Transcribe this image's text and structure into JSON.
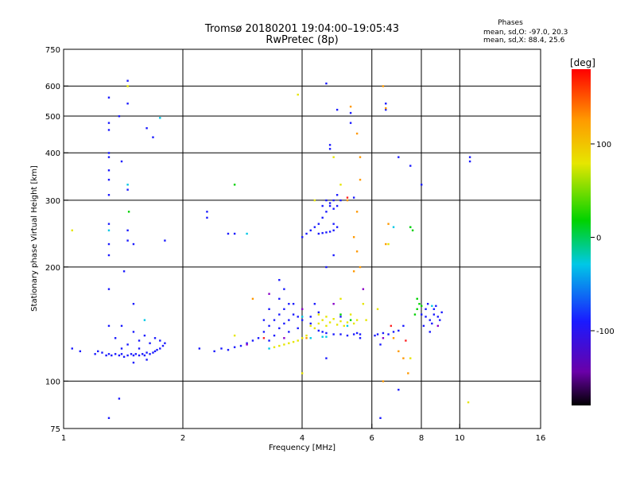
{
  "chart_data": {
    "type": "scatter",
    "title": "Tromsø 20180201 19:04:00–19:05:43",
    "subtitle": "RwPretec (8p)",
    "stats": {
      "heading": "Phases",
      "line1": "mean, sd,O: -97.0, 20.3",
      "line2": "mean, sd,X:  88.4, 25.6"
    },
    "xlabel": "Frequency [MHz]",
    "ylabel": "Stationary phase Virtual Height [km]",
    "x_scale": "log",
    "y_scale": "log",
    "xlim": [
      1,
      16
    ],
    "ylim": [
      75,
      750
    ],
    "x_ticks": [
      1,
      2,
      4,
      6,
      8,
      10,
      16
    ],
    "y_ticks": [
      75,
      100,
      200,
      300,
      400,
      500,
      600,
      750
    ],
    "grid_x": [
      2,
      4,
      6,
      8,
      10
    ],
    "grid_y": [
      100,
      200,
      300,
      400,
      500,
      600
    ],
    "grid": true,
    "colorbar": {
      "label": "[deg]",
      "range": [
        -180,
        180
      ],
      "ticks": [
        100,
        0,
        -100
      ]
    },
    "series": [
      {
        "color": "#1a1aff",
        "points": [
          [
            1.05,
            122
          ],
          [
            1.1,
            120
          ],
          [
            1.2,
            118
          ],
          [
            1.22,
            120
          ],
          [
            1.25,
            119
          ],
          [
            1.28,
            117
          ],
          [
            1.3,
            118
          ],
          [
            1.32,
            117
          ],
          [
            1.35,
            118
          ],
          [
            1.38,
            117
          ],
          [
            1.4,
            118
          ],
          [
            1.42,
            116
          ],
          [
            1.45,
            117
          ],
          [
            1.48,
            118
          ],
          [
            1.5,
            117
          ],
          [
            1.52,
            118
          ],
          [
            1.55,
            117
          ],
          [
            1.58,
            118
          ],
          [
            1.6,
            117
          ],
          [
            1.62,
            119
          ],
          [
            1.65,
            118
          ],
          [
            1.68,
            119
          ],
          [
            1.7,
            120
          ],
          [
            1.72,
            121
          ],
          [
            1.75,
            122
          ],
          [
            1.78,
            124
          ],
          [
            1.8,
            126
          ],
          [
            1.35,
            130
          ],
          [
            1.4,
            140
          ],
          [
            1.45,
            125
          ],
          [
            1.5,
            135
          ],
          [
            1.55,
            128
          ],
          [
            1.6,
            132
          ],
          [
            1.65,
            126
          ],
          [
            1.7,
            130
          ],
          [
            1.75,
            128
          ],
          [
            1.4,
            122
          ],
          [
            1.55,
            122
          ],
          [
            1.62,
            114
          ],
          [
            1.5,
            112
          ],
          [
            1.3,
            560
          ],
          [
            1.3,
            480
          ],
          [
            1.3,
            460
          ],
          [
            1.3,
            400
          ],
          [
            1.3,
            390
          ],
          [
            1.3,
            360
          ],
          [
            1.3,
            340
          ],
          [
            1.3,
            310
          ],
          [
            1.3,
            260
          ],
          [
            1.3,
            230
          ],
          [
            1.3,
            215
          ],
          [
            1.3,
            175
          ],
          [
            1.3,
            140
          ],
          [
            1.3,
            80
          ],
          [
            1.45,
            620
          ],
          [
            1.45,
            540
          ],
          [
            1.4,
            380
          ],
          [
            1.45,
            320
          ],
          [
            1.45,
            250
          ],
          [
            1.45,
            235
          ],
          [
            1.5,
            230
          ],
          [
            1.42,
            195
          ],
          [
            1.38,
            500
          ],
          [
            1.8,
            235
          ],
          [
            1.62,
            465
          ],
          [
            1.68,
            440
          ],
          [
            1.5,
            160
          ],
          [
            1.38,
            90
          ],
          [
            2.3,
            280
          ],
          [
            2.3,
            270
          ],
          [
            2.6,
            245
          ],
          [
            2.7,
            245
          ],
          [
            2.2,
            122
          ],
          [
            2.4,
            120
          ],
          [
            2.5,
            122
          ],
          [
            2.6,
            121
          ],
          [
            2.7,
            123
          ],
          [
            2.8,
            124
          ],
          [
            2.9,
            126
          ],
          [
            3.0,
            128
          ],
          [
            3.1,
            130
          ],
          [
            3.2,
            135
          ],
          [
            3.3,
            140
          ],
          [
            3.3,
            128
          ],
          [
            3.4,
            145
          ],
          [
            3.4,
            132
          ],
          [
            3.5,
            150
          ],
          [
            3.5,
            138
          ],
          [
            3.6,
            142
          ],
          [
            3.6,
            155
          ],
          [
            3.7,
            145
          ],
          [
            3.7,
            135
          ],
          [
            3.8,
            150
          ],
          [
            3.8,
            160
          ],
          [
            3.9,
            148
          ],
          [
            3.9,
            138
          ],
          [
            4.0,
            145
          ],
          [
            3.5,
            165
          ],
          [
            3.6,
            175
          ],
          [
            3.3,
            155
          ],
          [
            3.2,
            145
          ],
          [
            3.5,
            185
          ],
          [
            3.7,
            160
          ],
          [
            4.0,
            240
          ],
          [
            4.1,
            245
          ],
          [
            4.2,
            250
          ],
          [
            4.3,
            255
          ],
          [
            4.4,
            260
          ],
          [
            4.5,
            270
          ],
          [
            4.6,
            280
          ],
          [
            4.7,
            290
          ],
          [
            4.8,
            300
          ],
          [
            4.9,
            310
          ],
          [
            5.0,
            300
          ],
          [
            4.6,
            300
          ],
          [
            4.7,
            295
          ],
          [
            4.8,
            285
          ],
          [
            4.9,
            290
          ],
          [
            4.5,
            290
          ],
          [
            4.4,
            245
          ],
          [
            4.5,
            246
          ],
          [
            4.6,
            247
          ],
          [
            4.7,
            248
          ],
          [
            4.8,
            250
          ],
          [
            4.9,
            255
          ],
          [
            4.8,
            260
          ],
          [
            4.7,
            420
          ],
          [
            4.7,
            410
          ],
          [
            4.9,
            520
          ],
          [
            5.3,
            510
          ],
          [
            5.3,
            480
          ],
          [
            4.6,
            610
          ],
          [
            4.6,
            200
          ],
          [
            4.8,
            215
          ],
          [
            5.4,
            305
          ],
          [
            4.2,
            142
          ],
          [
            4.4,
            136
          ],
          [
            4.5,
            135
          ],
          [
            4.6,
            134
          ],
          [
            4.8,
            133
          ],
          [
            5.0,
            133
          ],
          [
            5.2,
            132
          ],
          [
            5.4,
            133
          ],
          [
            5.5,
            134
          ],
          [
            5.6,
            133
          ],
          [
            4.2,
            148
          ],
          [
            4.4,
            152
          ],
          [
            5.0,
            148
          ],
          [
            4.3,
            160
          ],
          [
            4.6,
            115
          ],
          [
            5.6,
            130
          ],
          [
            6.1,
            132
          ],
          [
            6.2,
            133
          ],
          [
            6.4,
            134
          ],
          [
            6.6,
            133
          ],
          [
            6.8,
            135
          ],
          [
            7.0,
            136
          ],
          [
            7.2,
            140
          ],
          [
            6.3,
            125
          ],
          [
            8.0,
            150
          ],
          [
            8.2,
            155
          ],
          [
            8.4,
            145
          ],
          [
            8.6,
            150
          ],
          [
            8.8,
            148
          ],
          [
            9.0,
            152
          ],
          [
            8.1,
            140
          ],
          [
            8.3,
            160
          ],
          [
            8.5,
            142
          ],
          [
            8.7,
            158
          ],
          [
            8.9,
            145
          ],
          [
            8.2,
            148
          ],
          [
            8.6,
            155
          ],
          [
            8.4,
            135
          ],
          [
            8.0,
            330
          ],
          [
            7.0,
            390
          ],
          [
            6.5,
            520
          ],
          [
            6.3,
            80
          ],
          [
            6.5,
            540
          ],
          [
            7.5,
            370
          ],
          [
            10.6,
            390
          ],
          [
            10.6,
            380
          ],
          [
            7.0,
            95
          ]
        ]
      },
      {
        "color": "#00c8e6",
        "points": [
          [
            1.3,
            250
          ],
          [
            1.45,
            330
          ],
          [
            1.75,
            495
          ],
          [
            2.9,
            245
          ],
          [
            4.0,
            148
          ],
          [
            4.2,
            130
          ],
          [
            4.6,
            131
          ],
          [
            5.2,
            140
          ],
          [
            6.8,
            255
          ],
          [
            7.5,
            255
          ],
          [
            8.5,
            158
          ],
          [
            1.6,
            145
          ],
          [
            3.3,
            122
          ],
          [
            4.5,
            131
          ]
        ]
      },
      {
        "color": "#00d200",
        "points": [
          [
            1.46,
            280
          ],
          [
            7.5,
            255
          ],
          [
            7.6,
            250
          ],
          [
            7.8,
            165
          ],
          [
            7.9,
            160
          ],
          [
            7.8,
            155
          ],
          [
            7.7,
            150
          ],
          [
            8.0,
            158
          ],
          [
            2.7,
            330
          ],
          [
            5.3,
            145
          ],
          [
            5.0,
            150
          ]
        ]
      },
      {
        "color": "#e6e600",
        "points": [
          [
            4.2,
            140
          ],
          [
            4.3,
            138
          ],
          [
            4.4,
            142
          ],
          [
            4.5,
            145
          ],
          [
            4.6,
            140
          ],
          [
            4.7,
            143
          ],
          [
            4.8,
            146
          ],
          [
            4.9,
            141
          ],
          [
            5.0,
            144
          ],
          [
            5.1,
            140
          ],
          [
            5.2,
            143
          ],
          [
            5.4,
            142
          ],
          [
            5.5,
            145
          ],
          [
            4.6,
            148
          ],
          [
            4.4,
            150
          ],
          [
            5.3,
            150
          ],
          [
            5.0,
            165
          ],
          [
            5.8,
            145
          ],
          [
            5.7,
            160
          ],
          [
            3.5,
            124
          ],
          [
            3.6,
            125
          ],
          [
            3.7,
            126
          ],
          [
            3.8,
            127
          ],
          [
            3.9,
            128
          ],
          [
            4.0,
            130
          ],
          [
            4.1,
            132
          ],
          [
            3.4,
            123
          ],
          [
            4.8,
            390
          ],
          [
            5.0,
            330
          ],
          [
            4.3,
            300
          ],
          [
            3.9,
            570
          ],
          [
            1.45,
            600
          ],
          [
            1.05,
            250
          ],
          [
            2.7,
            132
          ],
          [
            6.2,
            155
          ],
          [
            4.0,
            105
          ],
          [
            7.5,
            115
          ],
          [
            10.5,
            88
          ],
          [
            6.6,
            230
          ]
        ]
      },
      {
        "color": "#ff9900",
        "points": [
          [
            5.3,
            530
          ],
          [
            5.5,
            450
          ],
          [
            5.6,
            390
          ],
          [
            5.6,
            340
          ],
          [
            5.5,
            280
          ],
          [
            5.4,
            240
          ],
          [
            5.5,
            220
          ],
          [
            5.6,
            200
          ],
          [
            5.4,
            195
          ],
          [
            6.4,
            600
          ],
          [
            6.5,
            525
          ],
          [
            6.6,
            260
          ],
          [
            6.5,
            230
          ],
          [
            6.8,
            130
          ],
          [
            7.0,
            120
          ],
          [
            7.2,
            115
          ],
          [
            7.4,
            105
          ],
          [
            6.4,
            100
          ],
          [
            4.1,
            130
          ],
          [
            3.0,
            165
          ],
          [
            5.2,
            300
          ]
        ]
      },
      {
        "color": "#ff2020",
        "points": [
          [
            5.2,
            305
          ],
          [
            3.2,
            130
          ],
          [
            6.7,
            140
          ],
          [
            7.3,
            128
          ]
        ]
      },
      {
        "color": "#8a00c8",
        "points": [
          [
            3.3,
            170
          ],
          [
            4.0,
            155
          ],
          [
            3.6,
            130
          ],
          [
            2.9,
            125
          ],
          [
            4.8,
            160
          ],
          [
            5.7,
            175
          ],
          [
            8.8,
            140
          ],
          [
            6.4,
            130
          ]
        ]
      }
    ]
  }
}
